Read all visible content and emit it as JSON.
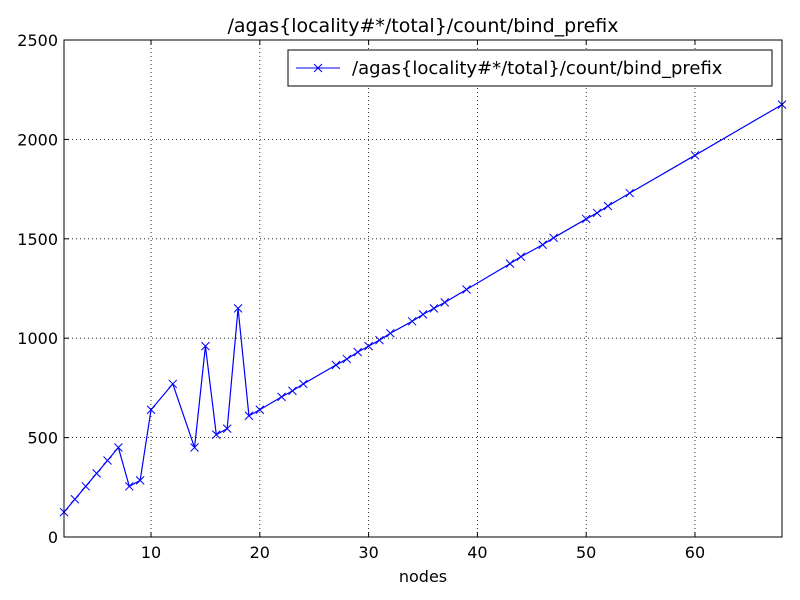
{
  "chart_data": {
    "type": "line",
    "title": "/agas{locality#*/total}/count/bind_prefix",
    "xlabel": "nodes",
    "ylabel": "",
    "xlim": [
      2,
      68
    ],
    "ylim": [
      0,
      2500
    ],
    "x_ticks": [
      "10",
      "20",
      "30",
      "40",
      "50",
      "60"
    ],
    "x_tick_values": [
      10,
      20,
      30,
      40,
      50,
      60
    ],
    "y_ticks": [
      "0",
      "500",
      "1000",
      "1500",
      "2000",
      "2500"
    ],
    "y_tick_values": [
      0,
      500,
      1000,
      1500,
      2000,
      2500
    ],
    "grid": true,
    "legend_position": "top-right",
    "series": [
      {
        "name": "/agas{locality#*/total}/count/bind_prefix",
        "color": "#0000ff",
        "marker": "x",
        "x": [
          2,
          3,
          4,
          5,
          6,
          7,
          8,
          9,
          10,
          12,
          14,
          15,
          16,
          17,
          18,
          19,
          20,
          22,
          23,
          24,
          27,
          28,
          29,
          30,
          31,
          32,
          34,
          35,
          36,
          37,
          39,
          43,
          44,
          46,
          47,
          50,
          51,
          52,
          54,
          60,
          68
        ],
        "y": [
          125,
          190,
          255,
          320,
          385,
          450,
          255,
          285,
          640,
          770,
          450,
          960,
          515,
          545,
          1150,
          610,
          640,
          705,
          735,
          770,
          865,
          895,
          930,
          960,
          990,
          1025,
          1085,
          1120,
          1150,
          1180,
          1245,
          1375,
          1410,
          1470,
          1505,
          1600,
          1630,
          1665,
          1730,
          1920,
          2175
        ]
      }
    ]
  }
}
